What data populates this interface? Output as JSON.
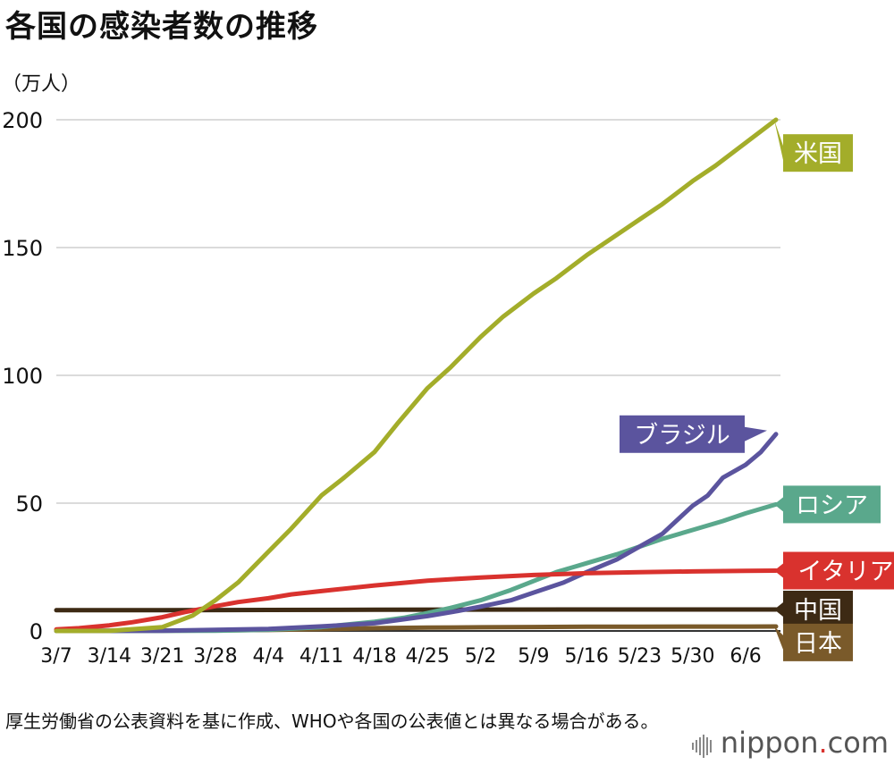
{
  "chart_data": {
    "type": "line",
    "title": "各国の感染者数の推移",
    "ylabel": "（万人）",
    "xlabel": "",
    "ylim": [
      0,
      200
    ],
    "yticks": [
      0,
      50,
      100,
      150,
      200
    ],
    "x_range": [
      0,
      95
    ],
    "xticks": [
      {
        "x": 0,
        "label": "3/7"
      },
      {
        "x": 7,
        "label": "3/14"
      },
      {
        "x": 14,
        "label": "3/21"
      },
      {
        "x": 21,
        "label": "3/28"
      },
      {
        "x": 28,
        "label": "4/4"
      },
      {
        "x": 35,
        "label": "4/11"
      },
      {
        "x": 42,
        "label": "4/18"
      },
      {
        "x": 49,
        "label": "4/25"
      },
      {
        "x": 56,
        "label": "5/2"
      },
      {
        "x": 63,
        "label": "5/9"
      },
      {
        "x": 70,
        "label": "5/16"
      },
      {
        "x": 77,
        "label": "5/23"
      },
      {
        "x": 84,
        "label": "5/30"
      },
      {
        "x": 91,
        "label": "6/6"
      }
    ],
    "grid": true,
    "series": [
      {
        "name": "米国",
        "color": "#a3ad2a",
        "x": [
          0,
          7,
          14,
          18,
          21,
          24,
          28,
          31,
          35,
          38,
          42,
          45,
          49,
          52,
          56,
          59,
          63,
          66,
          70,
          73,
          77,
          80,
          84,
          87,
          91,
          95
        ],
        "y": [
          0,
          0.05,
          1.5,
          6,
          12,
          19,
          31,
          40,
          53,
          60,
          70,
          81,
          95,
          103,
          115,
          123,
          132,
          138,
          147,
          153,
          161,
          167,
          176,
          182,
          191,
          200
        ]
      },
      {
        "name": "ブラジル",
        "color": "#5b549e",
        "x": [
          0,
          14,
          28,
          35,
          42,
          49,
          53,
          56,
          60,
          63,
          67,
          70,
          74,
          77,
          80,
          84,
          86,
          88,
          91,
          93,
          95
        ],
        "y": [
          0,
          0.1,
          0.8,
          1.8,
          3,
          5.8,
          7.8,
          9.5,
          12,
          15,
          19,
          23,
          28,
          33,
          38,
          49,
          53,
          60,
          65,
          70,
          77
        ]
      },
      {
        "name": "ロシア",
        "color": "#5aa88c",
        "x": [
          0,
          21,
          28,
          35,
          42,
          46,
          49,
          52,
          56,
          60,
          63,
          66,
          70,
          74,
          77,
          80,
          84,
          88,
          91,
          95
        ],
        "y": [
          0,
          0.1,
          0.5,
          1.5,
          3.6,
          5.2,
          7,
          9,
          12,
          16,
          19.5,
          23,
          26.5,
          30,
          33,
          36,
          39.5,
          43,
          46,
          49.5
        ]
      },
      {
        "name": "イタリア",
        "color": "#d9322e",
        "x": [
          0,
          3,
          7,
          10,
          14,
          17,
          21,
          24,
          28,
          31,
          35,
          42,
          49,
          56,
          63,
          70,
          77,
          84,
          91,
          95
        ],
        "y": [
          0.6,
          1.1,
          2.2,
          3.4,
          5.4,
          7.4,
          9.7,
          11.3,
          12.8,
          14.3,
          15.6,
          17.8,
          19.7,
          20.9,
          21.9,
          22.6,
          23.0,
          23.3,
          23.5,
          23.6
        ]
      },
      {
        "name": "中国",
        "color": "#3d2a14",
        "x": [
          0,
          14,
          28,
          42,
          56,
          70,
          84,
          95
        ],
        "y": [
          8.1,
          8.1,
          8.2,
          8.3,
          8.35,
          8.4,
          8.4,
          8.4
        ]
      },
      {
        "name": "日本",
        "color": "#7a5a2a",
        "x": [
          0,
          14,
          21,
          28,
          35,
          42,
          49,
          56,
          63,
          70,
          77,
          84,
          91,
          95
        ],
        "y": [
          0.05,
          0.1,
          0.2,
          0.4,
          0.7,
          1.1,
          1.3,
          1.45,
          1.55,
          1.65,
          1.68,
          1.7,
          1.72,
          1.74
        ]
      }
    ],
    "legend_labels": [
      {
        "name": "米国",
        "value_at": 187
      },
      {
        "name": "ブラジル",
        "value_at": 77
      },
      {
        "name": "ロシア",
        "value_at": 49.5
      },
      {
        "name": "イタリア",
        "value_at": 23.6
      },
      {
        "name": "中国",
        "value_at": 8.4
      },
      {
        "name": "日本",
        "value_at": -4.5
      }
    ]
  },
  "note": "厚生労働省の公表資料を基に作成、WHOや各国の公表値とは異なる場合がある。",
  "brand": {
    "name": "nippon",
    "dot": ".",
    "suffix": "com"
  }
}
